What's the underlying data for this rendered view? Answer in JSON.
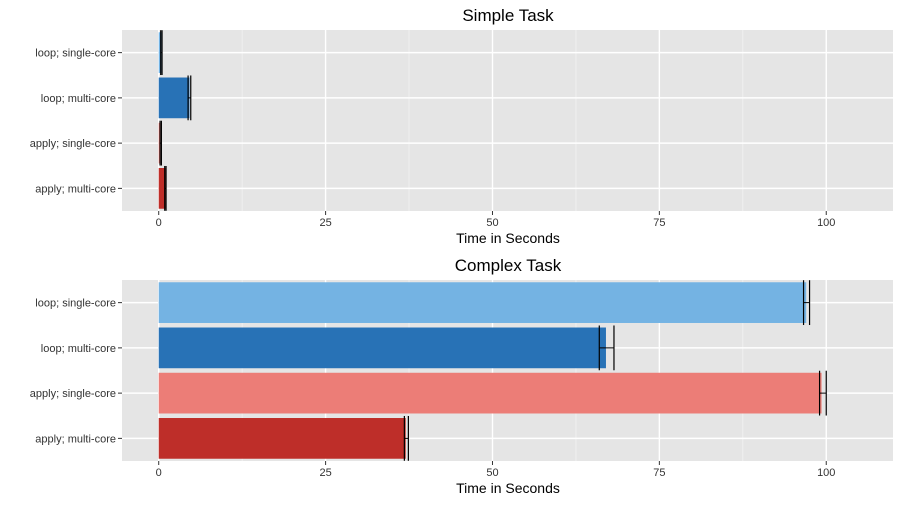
{
  "chart_data": [
    {
      "type": "bar",
      "orientation": "horizontal",
      "title": "Simple Task",
      "xlabel": "Time in Seconds",
      "ylabel": "",
      "xlim": [
        -5.5,
        110
      ],
      "xticks": [
        0,
        25,
        50,
        75,
        100
      ],
      "grid": true,
      "categories": [
        "loop; single-core",
        "loop; multi-core",
        "apply; single-core",
        "apply; multi-core"
      ],
      "values": [
        0.4,
        4.6,
        0.3,
        1.0
      ],
      "error_low": [
        0.3,
        4.4,
        0.2,
        0.9
      ],
      "error_high": [
        0.5,
        4.8,
        0.4,
        1.1
      ],
      "colors": [
        "#74B3E3",
        "#2872B6",
        "#EC7D77",
        "#BE2E29"
      ]
    },
    {
      "type": "bar",
      "orientation": "horizontal",
      "title": "Complex Task",
      "xlabel": "Time in Seconds",
      "ylabel": "",
      "xlim": [
        -5.5,
        110
      ],
      "xticks": [
        0,
        25,
        50,
        75,
        100
      ],
      "grid": true,
      "categories": [
        "loop; single-core",
        "loop; multi-core",
        "apply; single-core",
        "apply; multi-core"
      ],
      "values": [
        97.0,
        67.0,
        99.3,
        37.0
      ],
      "error_low": [
        96.6,
        66.0,
        99.0,
        36.8
      ],
      "error_high": [
        97.5,
        68.2,
        100.0,
        37.4
      ],
      "colors": [
        "#74B3E3",
        "#2872B6",
        "#EC7D77",
        "#BE2E29"
      ]
    }
  ]
}
